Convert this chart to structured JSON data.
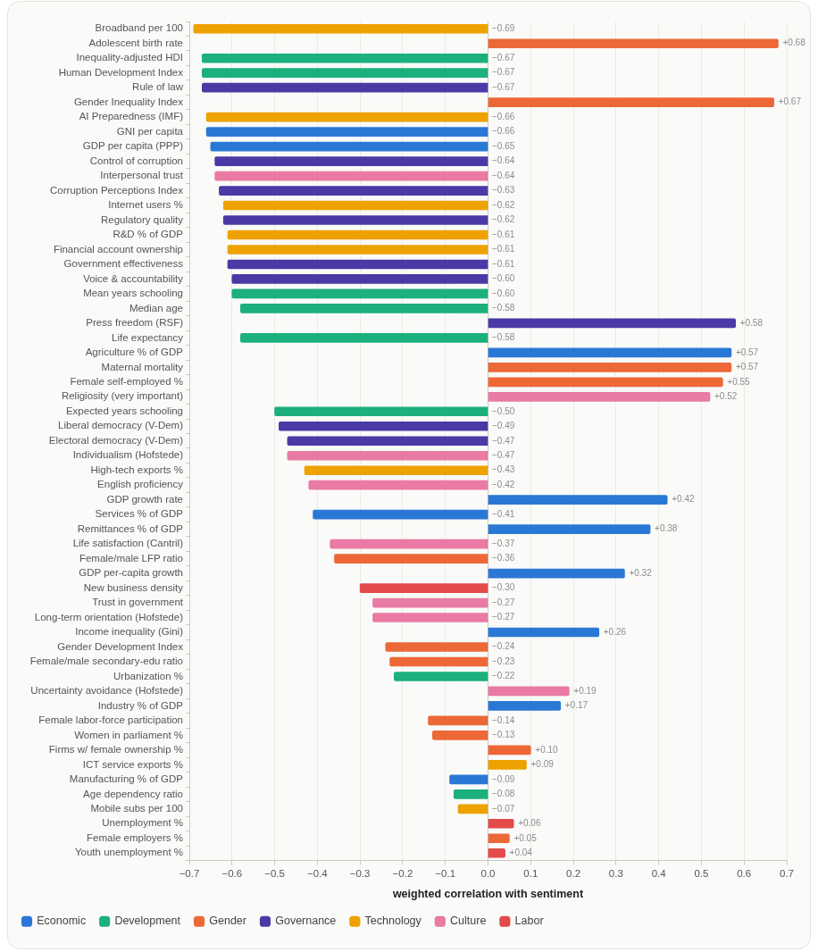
{
  "chart_data": {
    "type": "bar",
    "orientation": "horizontal",
    "categories": [
      "Broadband per 100",
      "Adolescent birth rate",
      "Inequality-adjusted HDI",
      "Human Development Index",
      "Rule of law",
      "Gender Inequality Index",
      "AI Preparedness (IMF)",
      "GNI per capita",
      "GDP per capita (PPP)",
      "Control of corruption",
      "Interpersonal trust",
      "Corruption Perceptions Index",
      "Internet users %",
      "Regulatory quality",
      "R&D % of GDP",
      "Financial account ownership",
      "Government effectiveness",
      "Voice & accountability",
      "Mean years schooling",
      "Median age",
      "Press freedom (RSF)",
      "Life expectancy",
      "Agriculture % of GDP",
      "Maternal mortality",
      "Female self-employed %",
      "Religiosity (very important)",
      "Expected years schooling",
      "Liberal democracy (V-Dem)",
      "Electoral democracy (V-Dem)",
      "Individualism (Hofstede)",
      "High-tech exports %",
      "English proficiency",
      "GDP growth rate",
      "Services % of GDP",
      "Remittances % of GDP",
      "Life satisfaction (Cantril)",
      "Female/male LFP ratio",
      "GDP per-capita growth",
      "New business density",
      "Trust in government",
      "Long-term orientation (Hofstede)",
      "Income inequality (Gini)",
      "Gender Development Index",
      "Female/male secondary-edu ratio",
      "Urbanization %",
      "Uncertainty avoidance (Hofstede)",
      "Industry % of GDP",
      "Female labor-force participation",
      "Women in parliament %",
      "Firms w/ female ownership %",
      "ICT service exports %",
      "Manufacturing % of GDP",
      "Age dependency ratio",
      "Mobile subs per 100",
      "Unemployment %",
      "Female employers %",
      "Youth unemployment %"
    ],
    "series": [
      {
        "name": "Economic",
        "color": "#2a78d6",
        "values": [
          null,
          null,
          null,
          null,
          null,
          null,
          null,
          -0.66,
          -0.65,
          null,
          null,
          null,
          null,
          null,
          null,
          null,
          null,
          null,
          null,
          null,
          null,
          null,
          0.57,
          null,
          null,
          null,
          null,
          null,
          null,
          null,
          null,
          null,
          0.42,
          -0.41,
          0.38,
          null,
          null,
          0.32,
          null,
          null,
          null,
          0.26,
          null,
          null,
          null,
          null,
          0.17,
          null,
          null,
          null,
          null,
          -0.09,
          null,
          null,
          null,
          null,
          null
        ],
        "value_labels": [
          null,
          null,
          null,
          null,
          null,
          null,
          null,
          "−0.66",
          "−0.65",
          null,
          null,
          null,
          null,
          null,
          null,
          null,
          null,
          null,
          null,
          null,
          null,
          null,
          "+0.57",
          null,
          null,
          null,
          null,
          null,
          null,
          null,
          null,
          null,
          "+0.42",
          "−0.41",
          "+0.38",
          null,
          null,
          "+0.32",
          null,
          null,
          null,
          "+0.26",
          null,
          null,
          null,
          null,
          "+0.17",
          null,
          null,
          null,
          null,
          "−0.09",
          null,
          null,
          null,
          null,
          null
        ]
      },
      {
        "name": "Development",
        "color": "#1bb07c",
        "values": [
          null,
          null,
          -0.67,
          -0.67,
          null,
          null,
          null,
          null,
          null,
          null,
          null,
          null,
          null,
          null,
          null,
          null,
          null,
          null,
          -0.6,
          -0.58,
          null,
          -0.58,
          null,
          null,
          null,
          null,
          -0.5,
          null,
          null,
          null,
          null,
          null,
          null,
          null,
          null,
          null,
          null,
          null,
          null,
          null,
          null,
          null,
          null,
          null,
          -0.22,
          null,
          null,
          null,
          null,
          null,
          null,
          null,
          -0.08,
          null,
          null,
          null,
          null
        ],
        "value_labels": [
          null,
          null,
          "−0.67",
          "−0.67",
          null,
          null,
          null,
          null,
          null,
          null,
          null,
          null,
          null,
          null,
          null,
          null,
          null,
          null,
          "−0.60",
          "−0.58",
          null,
          "−0.58",
          null,
          null,
          null,
          null,
          "−0.50",
          null,
          null,
          null,
          null,
          null,
          null,
          null,
          null,
          null,
          null,
          null,
          null,
          null,
          null,
          null,
          null,
          null,
          "−0.22",
          null,
          null,
          null,
          null,
          null,
          null,
          null,
          "−0.08",
          null,
          null,
          null,
          null
        ]
      },
      {
        "name": "Gender",
        "color": "#ec6837",
        "values": [
          null,
          0.68,
          null,
          null,
          null,
          0.67,
          null,
          null,
          null,
          null,
          null,
          null,
          null,
          null,
          null,
          null,
          null,
          null,
          null,
          null,
          null,
          null,
          null,
          0.57,
          0.55,
          null,
          null,
          null,
          null,
          null,
          null,
          null,
          null,
          null,
          null,
          null,
          -0.36,
          null,
          null,
          null,
          null,
          null,
          -0.24,
          -0.23,
          null,
          null,
          null,
          -0.14,
          -0.13,
          0.1,
          null,
          null,
          null,
          null,
          null,
          0.05,
          null
        ],
        "value_labels": [
          null,
          "+0.68",
          null,
          null,
          null,
          "+0.67",
          null,
          null,
          null,
          null,
          null,
          null,
          null,
          null,
          null,
          null,
          null,
          null,
          null,
          null,
          null,
          null,
          null,
          "+0.57",
          "+0.55",
          null,
          null,
          null,
          null,
          null,
          null,
          null,
          null,
          null,
          null,
          null,
          "−0.36",
          null,
          null,
          null,
          null,
          null,
          "−0.24",
          "−0.23",
          null,
          null,
          null,
          "−0.14",
          "−0.13",
          "+0.10",
          null,
          null,
          null,
          null,
          null,
          "+0.05",
          null
        ]
      },
      {
        "name": "Governance",
        "color": "#4a3aa6",
        "values": [
          null,
          null,
          null,
          null,
          -0.67,
          null,
          null,
          null,
          null,
          -0.64,
          null,
          -0.63,
          null,
          -0.62,
          null,
          null,
          -0.61,
          -0.6,
          null,
          null,
          0.58,
          null,
          null,
          null,
          null,
          null,
          null,
          -0.49,
          -0.47,
          null,
          null,
          null,
          null,
          null,
          null,
          null,
          null,
          null,
          null,
          null,
          null,
          null,
          null,
          null,
          null,
          null,
          null,
          null,
          null,
          null,
          null,
          null,
          null,
          null,
          null,
          null,
          null
        ],
        "value_labels": [
          null,
          null,
          null,
          null,
          "−0.67",
          null,
          null,
          null,
          null,
          "−0.64",
          null,
          "−0.63",
          null,
          "−0.62",
          null,
          null,
          "−0.61",
          "−0.60",
          null,
          null,
          "+0.58",
          null,
          null,
          null,
          null,
          null,
          null,
          "−0.49",
          "−0.47",
          null,
          null,
          null,
          null,
          null,
          null,
          null,
          null,
          null,
          null,
          null,
          null,
          null,
          null,
          null,
          null,
          null,
          null,
          null,
          null,
          null,
          null,
          null,
          null,
          null,
          null,
          null,
          null
        ]
      },
      {
        "name": "Technology",
        "color": "#eda200",
        "values": [
          -0.69,
          null,
          null,
          null,
          null,
          null,
          -0.66,
          null,
          null,
          null,
          null,
          null,
          -0.62,
          null,
          -0.61,
          -0.61,
          null,
          null,
          null,
          null,
          null,
          null,
          null,
          null,
          null,
          null,
          null,
          null,
          null,
          null,
          -0.43,
          null,
          null,
          null,
          null,
          null,
          null,
          null,
          null,
          null,
          null,
          null,
          null,
          null,
          null,
          null,
          null,
          null,
          null,
          null,
          0.09,
          null,
          null,
          -0.07,
          null,
          null,
          null
        ],
        "value_labels": [
          "−0.69",
          null,
          null,
          null,
          null,
          null,
          "−0.66",
          null,
          null,
          null,
          null,
          null,
          "−0.62",
          null,
          "−0.61",
          "−0.61",
          null,
          null,
          null,
          null,
          null,
          null,
          null,
          null,
          null,
          null,
          null,
          null,
          null,
          null,
          "−0.43",
          null,
          null,
          null,
          null,
          null,
          null,
          null,
          null,
          null,
          null,
          null,
          null,
          null,
          null,
          null,
          null,
          null,
          null,
          null,
          "+0.09",
          null,
          null,
          "−0.07",
          null,
          null,
          null
        ]
      },
      {
        "name": "Culture",
        "color": "#e87aa4",
        "values": [
          null,
          null,
          null,
          null,
          null,
          null,
          null,
          null,
          null,
          null,
          -0.64,
          null,
          null,
          null,
          null,
          null,
          null,
          null,
          null,
          null,
          null,
          null,
          null,
          null,
          null,
          0.52,
          null,
          null,
          null,
          -0.47,
          null,
          -0.42,
          null,
          null,
          null,
          -0.37,
          null,
          null,
          null,
          -0.27,
          -0.27,
          null,
          null,
          null,
          null,
          0.19,
          null,
          null,
          null,
          null,
          null,
          null,
          null,
          null,
          null,
          null,
          null
        ],
        "value_labels": [
          null,
          null,
          null,
          null,
          null,
          null,
          null,
          null,
          null,
          null,
          "−0.64",
          null,
          null,
          null,
          null,
          null,
          null,
          null,
          null,
          null,
          null,
          null,
          null,
          null,
          null,
          "+0.52",
          null,
          null,
          null,
          "−0.47",
          null,
          "−0.42",
          null,
          null,
          null,
          "−0.37",
          null,
          null,
          null,
          "−0.27",
          "−0.27",
          null,
          null,
          null,
          null,
          "+0.19",
          null,
          null,
          null,
          null,
          null,
          null,
          null,
          null,
          null,
          null,
          null
        ]
      },
      {
        "name": "Labor",
        "color": "#e34a4a",
        "values": [
          null,
          null,
          null,
          null,
          null,
          null,
          null,
          null,
          null,
          null,
          null,
          null,
          null,
          null,
          null,
          null,
          null,
          null,
          null,
          null,
          null,
          null,
          null,
          null,
          null,
          null,
          null,
          null,
          null,
          null,
          null,
          null,
          null,
          null,
          null,
          null,
          null,
          null,
          -0.3,
          null,
          null,
          null,
          null,
          null,
          null,
          null,
          null,
          null,
          null,
          null,
          null,
          null,
          null,
          null,
          0.06,
          null,
          0.04
        ],
        "value_labels": [
          null,
          null,
          null,
          null,
          null,
          null,
          null,
          null,
          null,
          null,
          null,
          null,
          null,
          null,
          null,
          null,
          null,
          null,
          null,
          null,
          null,
          null,
          null,
          null,
          null,
          null,
          null,
          null,
          null,
          null,
          null,
          null,
          null,
          null,
          null,
          null,
          null,
          null,
          "−0.30",
          null,
          null,
          null,
          null,
          null,
          null,
          null,
          null,
          null,
          null,
          null,
          null,
          null,
          null,
          null,
          "+0.06",
          null,
          "+0.04"
        ]
      }
    ],
    "xlabel": "weighted correlation with sentiment",
    "xlim": [
      -0.7,
      0.7
    ],
    "xticks": [
      {
        "value": -0.7,
        "label": "−0.7"
      },
      {
        "value": -0.6,
        "label": "−0.6"
      },
      {
        "value": -0.5,
        "label": "−0.5"
      },
      {
        "value": -0.4,
        "label": "−0.4"
      },
      {
        "value": -0.3,
        "label": "−0.3"
      },
      {
        "value": -0.2,
        "label": "−0.2"
      },
      {
        "value": -0.1,
        "label": "−0.1"
      },
      {
        "value": 0,
        "label": "0.0"
      },
      0.1,
      0.2,
      0.3,
      0.4,
      0.5,
      0.6,
      0.7
    ],
    "grid": "x",
    "legend": "bottom left"
  }
}
